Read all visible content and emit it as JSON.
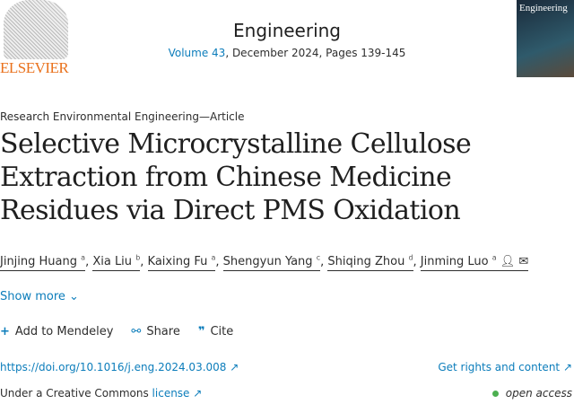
{
  "publisher": "ELSEVIER",
  "journal": {
    "title": "Engineering",
    "volume_link": "Volume 43",
    "details": ", December 2024, Pages 139-145",
    "cover_text": "Engineering"
  },
  "article_type": "Research Environmental Engineering—Article",
  "title": "Selective Microcrystalline Cellulose Extraction from Chinese Medicine Residues via Direct PMS Oxidation",
  "authors": [
    {
      "name": "Jinjing Huang",
      "aff": "a"
    },
    {
      "name": "Xia Liu",
      "aff": "b"
    },
    {
      "name": "Kaixing Fu",
      "aff": "a"
    },
    {
      "name": "Shengyun Yang",
      "aff": "c"
    },
    {
      "name": "Shiqing Zhou",
      "aff": "d"
    },
    {
      "name": "Jinming Luo",
      "aff": "a"
    }
  ],
  "show_more": "Show more",
  "actions": {
    "mendeley": "Add to Mendeley",
    "share": "Share",
    "cite": "Cite"
  },
  "doi": "https://doi.org/10.1016/j.eng.2024.03.008",
  "rights": "Get rights and content",
  "license_prefix": "Under a Creative Commons ",
  "license_link": "license",
  "open_access": "open access",
  "colors": {
    "link": "#0c7dbb",
    "elsevier": "#e9711c",
    "open_access_dot": "#4caf50"
  }
}
